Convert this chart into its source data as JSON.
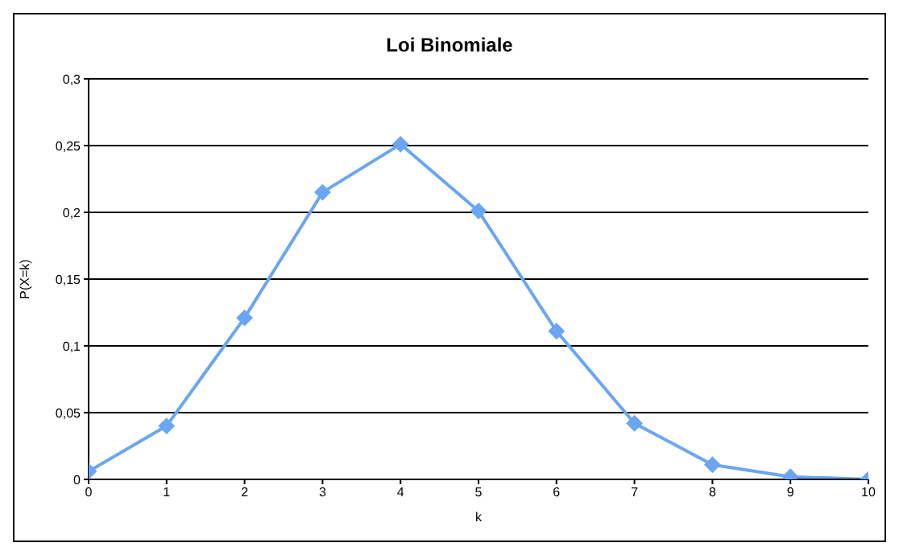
{
  "chart_data": {
    "type": "line",
    "title": "Loi Binomiale",
    "xlabel": "k",
    "ylabel": "P(X=k)",
    "x": [
      0,
      1,
      2,
      3,
      4,
      5,
      6,
      7,
      8,
      9,
      10
    ],
    "series": [
      {
        "color": "#6aa6f2",
        "values": [
          0.006,
          0.04,
          0.121,
          0.215,
          0.251,
          0.201,
          0.111,
          0.042,
          0.011,
          0.002,
          0
        ]
      }
    ],
    "xlim": [
      0,
      10
    ],
    "xticks": [
      0,
      1,
      2,
      3,
      4,
      5,
      6,
      7,
      8,
      9,
      10
    ],
    "ylim": [
      0,
      0.3
    ],
    "yticks": [
      0,
      {
        "value": 0.05,
        "label": "0,05"
      },
      {
        "value": 0.1,
        "label": "0,1"
      },
      {
        "value": 0.15,
        "label": "0,15"
      },
      {
        "value": 0.2,
        "label": "0,2"
      },
      {
        "value": 0.25,
        "label": "0,25"
      },
      {
        "value": 0.3,
        "label": "0,3"
      }
    ],
    "grid": "y",
    "marker": "diamond",
    "line_style": "solid"
  }
}
